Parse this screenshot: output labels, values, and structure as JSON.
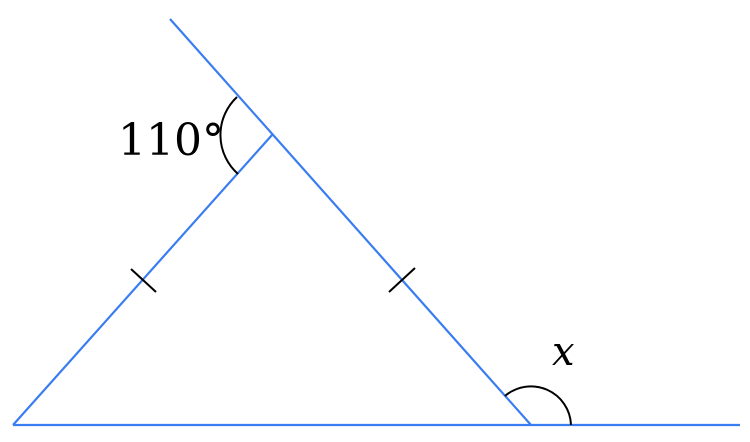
{
  "diagram": {
    "angle_label": "110°",
    "unknown_label": "x",
    "colors": {
      "lines": "#3a7df0",
      "marks": "#000000"
    },
    "equal_sides_marked": true
  }
}
